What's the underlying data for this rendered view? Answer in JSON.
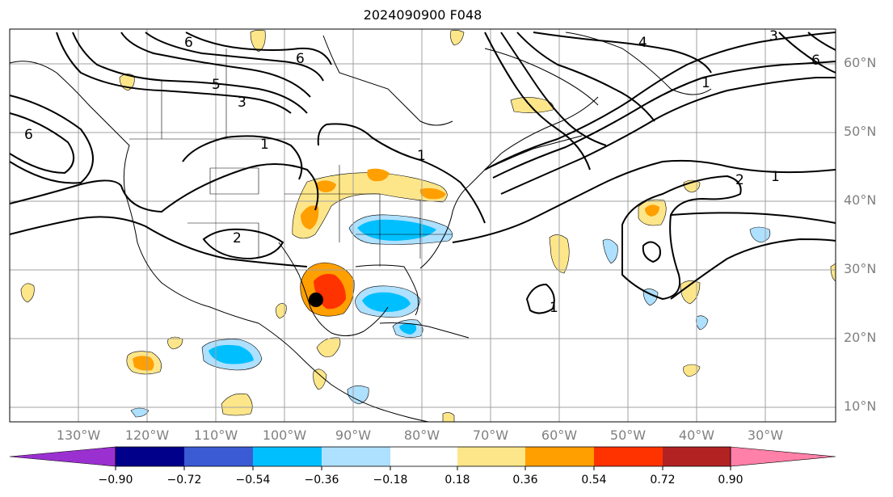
{
  "title": "2024090900 F048",
  "map": {
    "lat_labels": [
      "60°N",
      "50°N",
      "40°N",
      "30°N",
      "20°N",
      "10°N"
    ],
    "lon_labels": [
      "130°W",
      "120°W",
      "110°W",
      "100°W",
      "90°W",
      "80°W",
      "70°W",
      "60°W",
      "50°W",
      "40°W",
      "30°W"
    ],
    "contour_labels": [
      "6",
      "6",
      "5",
      "3",
      "4",
      "6",
      "1",
      "1",
      "1",
      "2",
      "1",
      "2",
      "1",
      "3",
      "6"
    ],
    "storm_marker": "black-dot",
    "fill_colors": {
      "yellow": "#fde68a",
      "orange": "#ff9f00",
      "red": "#ff3300",
      "lightblue": "#aee0ff",
      "blue": "#00bfff"
    }
  },
  "colorbar": {
    "colors": [
      "#9b30d0",
      "#00008b",
      "#3a5bd4",
      "#00bfff",
      "#aee0ff",
      "#ffffff",
      "#fde68a",
      "#ff9f00",
      "#ff3300",
      "#b22222",
      "#ff80a8"
    ],
    "tick_labels": [
      "−0.90",
      "−0.72",
      "−0.54",
      "−0.36",
      "−0.18",
      "0.18",
      "0.36",
      "0.54",
      "0.72",
      "0.90"
    ],
    "extend": "both"
  }
}
